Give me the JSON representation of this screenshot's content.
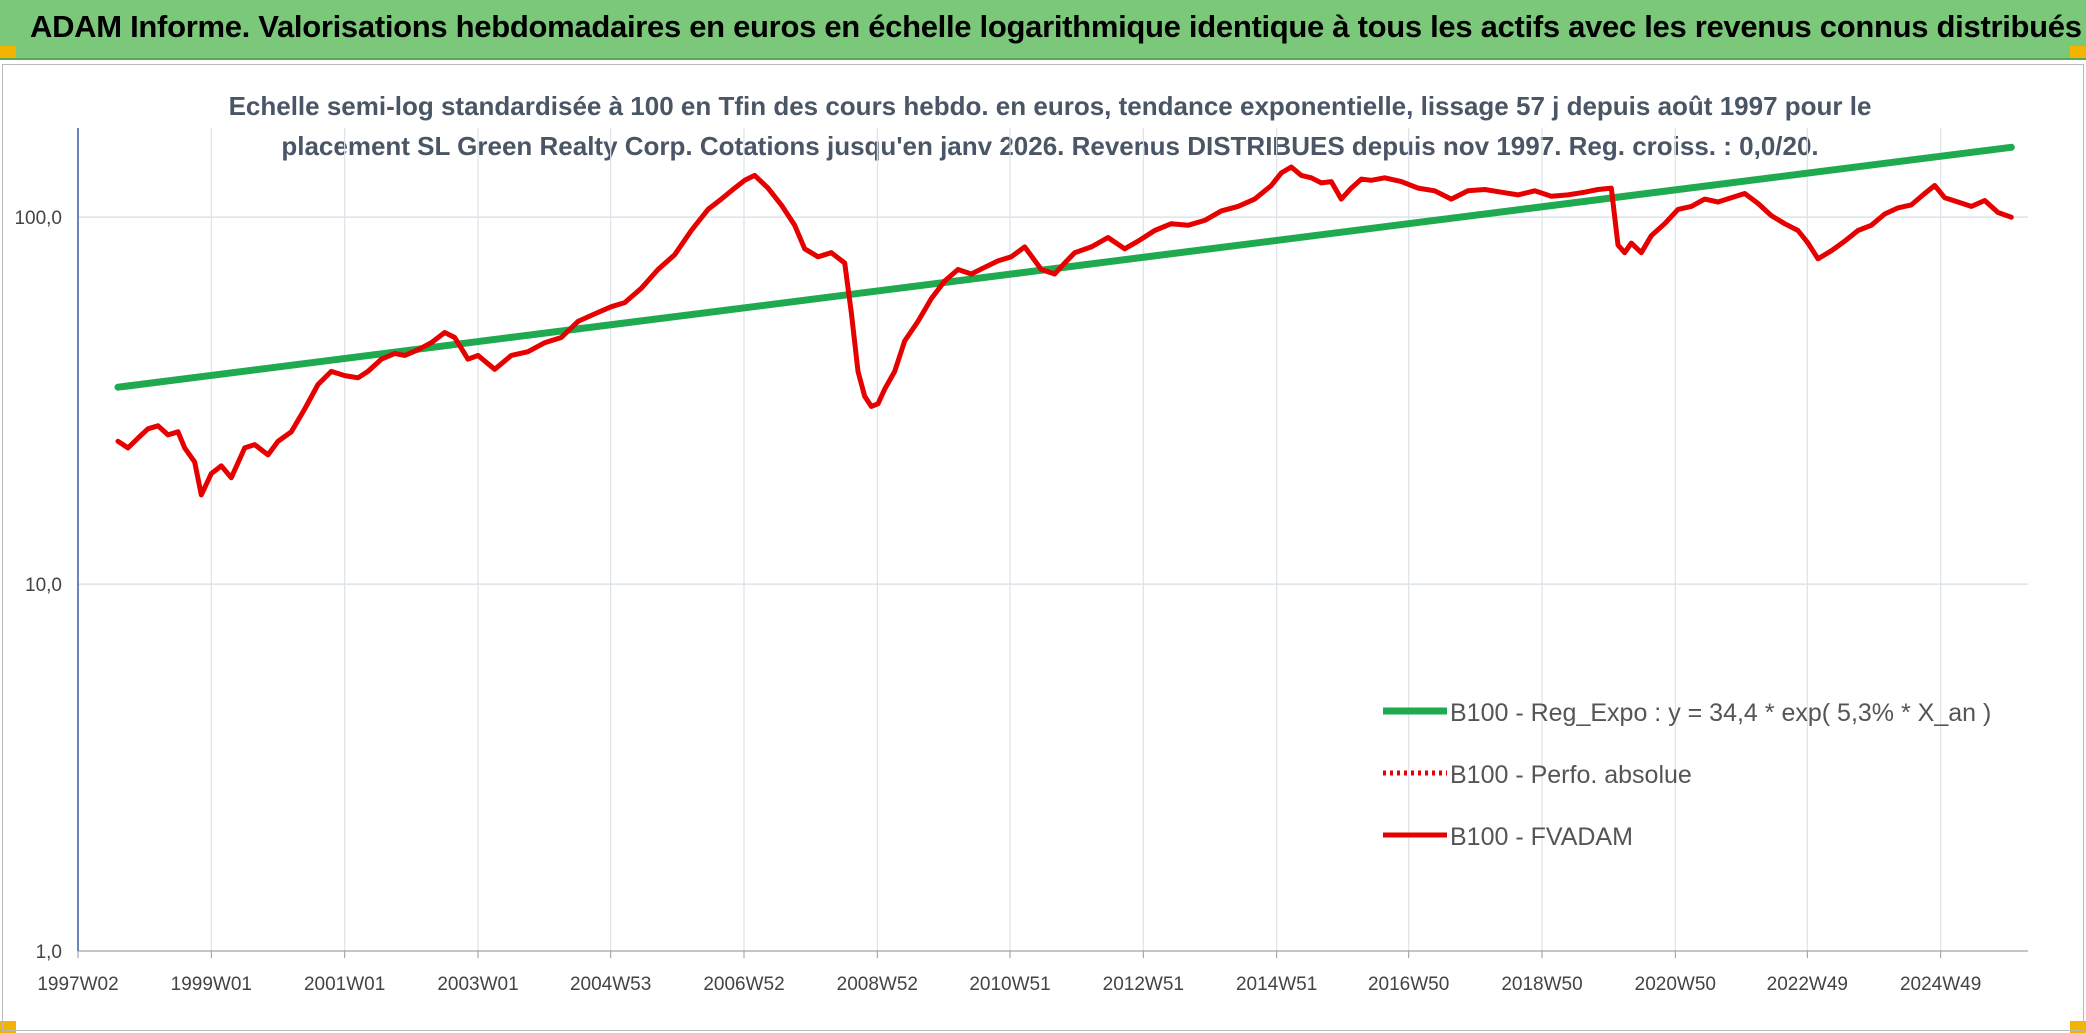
{
  "header": {
    "title": "ADAM Informe. Valorisations hebdomadaires en euros en échelle logarithmique identique à tous les actifs avec les revenus connus distribués"
  },
  "colors": {
    "header_bg": "#7cc87a",
    "trend": "#1faa50",
    "fvadam": "#e60000",
    "perfo": "#e60000",
    "corner": "#f3b400"
  },
  "chart_data": {
    "type": "line",
    "title_line1": "Echelle semi-log standardisée à 100 en Tfin des cours hebdo. en euros, tendance exponentielle, lissage 57 j depuis août 1997 pour le",
    "title_line2": "placement SL Green Realty Corp. Cotations jusqu'en janv 2026. Revenus DISTRIBUES depuis nov 1997. Reg. croiss. : 0,0/20.",
    "y_scale": "log",
    "ylim": [
      1,
      175
    ],
    "xlim": [
      1997.0,
      2026.25
    ],
    "y_ticks": [
      {
        "value": 1,
        "label": "1,0"
      },
      {
        "value": 10,
        "label": "10,0"
      },
      {
        "value": 100,
        "label": "100,0"
      }
    ],
    "x_ticks": [
      {
        "value": 1997.0,
        "label": "1997W02"
      },
      {
        "value": 1999.0,
        "label": "1999W01"
      },
      {
        "value": 2001.0,
        "label": "2001W01"
      },
      {
        "value": 2003.0,
        "label": "2003W01"
      },
      {
        "value": 2004.99,
        "label": "2004W53"
      },
      {
        "value": 2006.99,
        "label": "2006W52"
      },
      {
        "value": 2008.99,
        "label": "2008W52"
      },
      {
        "value": 2010.98,
        "label": "2010W51"
      },
      {
        "value": 2012.98,
        "label": "2012W51"
      },
      {
        "value": 2014.98,
        "label": "2014W51"
      },
      {
        "value": 2016.96,
        "label": "2016W50"
      },
      {
        "value": 2018.96,
        "label": "2018W50"
      },
      {
        "value": 2020.96,
        "label": "2020W50"
      },
      {
        "value": 2022.94,
        "label": "2022W49"
      },
      {
        "value": 2024.94,
        "label": "2024W49"
      }
    ],
    "grid": true,
    "legend_position": "right",
    "series": [
      {
        "name": "B100 - Reg_Expo : y = 34,4 * exp( 5,3% *  X_an )",
        "style": "solid-thick",
        "x": [
          1997.6,
          2026.0
        ],
        "y": [
          34.4,
          155
        ]
      },
      {
        "name": "B100 - Perfo. absolue",
        "style": "dotted",
        "x": [],
        "y": []
      },
      {
        "name": "B100 - FVADAM",
        "style": "solid",
        "x": [
          1997.6,
          1997.75,
          1997.9,
          1998.05,
          1998.2,
          1998.35,
          1998.5,
          1998.6,
          1998.75,
          1998.85,
          1999.0,
          1999.15,
          1999.3,
          1999.5,
          1999.65,
          1999.85,
          2000.0,
          2000.2,
          2000.4,
          2000.6,
          2000.8,
          2001.0,
          2001.2,
          2001.35,
          2001.55,
          2001.75,
          2001.9,
          2002.1,
          2002.3,
          2002.5,
          2002.65,
          2002.85,
          2003.0,
          2003.25,
          2003.5,
          2003.75,
          2004.0,
          2004.25,
          2004.5,
          2004.75,
          2005.0,
          2005.2,
          2005.45,
          2005.7,
          2005.95,
          2006.2,
          2006.45,
          2006.65,
          2006.85,
          2007.0,
          2007.15,
          2007.35,
          2007.55,
          2007.75,
          2007.9,
          2008.1,
          2008.3,
          2008.5,
          2008.6,
          2008.7,
          2008.8,
          2008.9,
          2009.0,
          2009.1,
          2009.25,
          2009.4,
          2009.6,
          2009.8,
          2010.0,
          2010.2,
          2010.4,
          2010.6,
          2010.8,
          2011.0,
          2011.2,
          2011.45,
          2011.65,
          2011.8,
          2011.95,
          2012.2,
          2012.45,
          2012.7,
          2012.9,
          2013.15,
          2013.4,
          2013.65,
          2013.9,
          2014.15,
          2014.4,
          2014.65,
          2014.9,
          2015.05,
          2015.2,
          2015.35,
          2015.5,
          2015.65,
          2015.8,
          2015.95,
          2016.1,
          2016.25,
          2016.4,
          2016.6,
          2016.85,
          2017.1,
          2017.35,
          2017.6,
          2017.85,
          2018.1,
          2018.35,
          2018.6,
          2018.85,
          2019.1,
          2019.35,
          2019.6,
          2019.8,
          2020.0,
          2020.1,
          2020.2,
          2020.3,
          2020.45,
          2020.6,
          2020.8,
          2021.0,
          2021.2,
          2021.4,
          2021.6,
          2021.8,
          2022.0,
          2022.2,
          2022.4,
          2022.6,
          2022.8,
          2022.95,
          2023.1,
          2023.3,
          2023.5,
          2023.7,
          2023.9,
          2024.1,
          2024.3,
          2024.5,
          2024.7,
          2024.85,
          2025.0,
          2025.2,
          2025.4,
          2025.6,
          2025.8,
          2026.0
        ],
        "y": [
          24.5,
          23.5,
          25.0,
          26.5,
          27.0,
          25.5,
          26.0,
          23.5,
          21.5,
          17.5,
          20.0,
          21.0,
          19.5,
          23.5,
          24.0,
          22.5,
          24.5,
          26.0,
          30.0,
          35.0,
          38.0,
          37.0,
          36.5,
          38.0,
          41.0,
          42.5,
          42.0,
          43.5,
          45.5,
          48.5,
          47.0,
          41.0,
          42.0,
          38.5,
          42.0,
          43.0,
          45.5,
          47.0,
          52.0,
          54.5,
          57.0,
          58.5,
          64.0,
          72.0,
          79.0,
          92.0,
          105.0,
          112.0,
          120.0,
          126.0,
          130.0,
          120.0,
          108.0,
          95.0,
          82.0,
          78.0,
          80.0,
          75.0,
          55.0,
          38.0,
          32.5,
          30.5,
          31.0,
          34.0,
          38.0,
          46.0,
          52.0,
          60.0,
          67.0,
          72.0,
          70.0,
          73.0,
          76.0,
          78.0,
          83.0,
          72.0,
          70.0,
          75.0,
          80.0,
          83.0,
          88.0,
          82.0,
          86.0,
          92.0,
          96.0,
          95.0,
          98.0,
          104.0,
          107.0,
          112.0,
          122.0,
          132.0,
          137.0,
          130.0,
          128.0,
          124.0,
          125.0,
          112.0,
          120.0,
          127.0,
          126.0,
          128.0,
          125.0,
          120.0,
          118.0,
          112.0,
          118.0,
          119.0,
          117.0,
          115.0,
          118.0,
          114.0,
          115.0,
          117.0,
          119.0,
          120.0,
          84.0,
          80.0,
          85.0,
          80.0,
          89.0,
          96.0,
          105.0,
          107.0,
          112.0,
          110.0,
          113.0,
          116.0,
          109.0,
          101.0,
          96.0,
          92.0,
          85.0,
          77.0,
          81.0,
          86.0,
          92.0,
          95.0,
          102.0,
          106.0,
          108.0,
          116.0,
          122.0,
          113.0,
          110.0,
          107.0,
          111.0,
          103.0,
          100.0
        ]
      }
    ]
  }
}
